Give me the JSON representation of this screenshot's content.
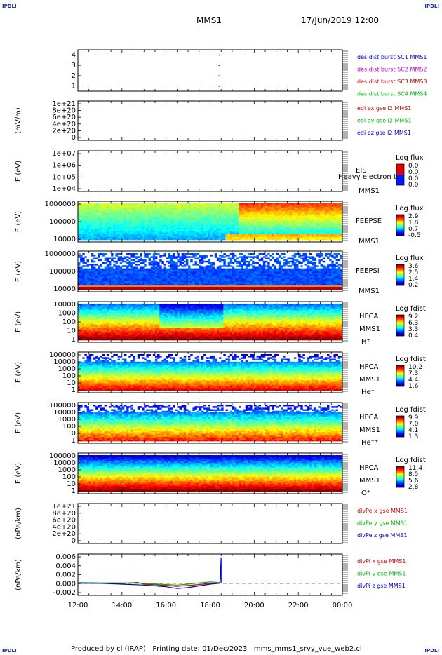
{
  "corner_labels": [
    "IPDLI",
    "IPDLI",
    "IPDLI",
    "IPDLI"
  ],
  "header": {
    "title": "MMS1",
    "date": "17/Jun/2019 12:00"
  },
  "footer": {
    "text": "Produced by cl (IRAP)   Printing date: 01/Dec/2023   mms_mms1_srvy_vue_web2.cl"
  },
  "x_axis": {
    "ticks": [
      "12:00",
      "14:00",
      "16:00",
      "18:00",
      "20:00",
      "22:00",
      "00:00"
    ]
  },
  "colors": {
    "black": "#000000",
    "blue": "#0000c8",
    "magenta": "#c800c8",
    "red": "#c80000",
    "green": "#00b400"
  },
  "chart_data": [
    {
      "name": "des-dist-burst",
      "type": "scatter",
      "ylabel": "",
      "yticks": [
        "4",
        "3",
        "2",
        "1"
      ],
      "ylim": [
        0.5,
        4.5
      ],
      "series": [
        {
          "name": "des dist burst SC1 MMS1",
          "color": "#0000c8",
          "x": [
            18.4
          ],
          "y": [
            1
          ]
        },
        {
          "name": "des dist burst SC2 MMS2",
          "color": "#c800c8",
          "x": [
            18.4
          ],
          "y": [
            2
          ]
        },
        {
          "name": "des dist burst SC3 MMS3",
          "color": "#c80000",
          "x": [
            18.4
          ],
          "y": [
            3
          ]
        },
        {
          "name": "des dist burst SC4 MMS4",
          "color": "#00b400",
          "x": [
            18.4
          ],
          "y": [
            4
          ]
        }
      ]
    },
    {
      "name": "edi-e-field",
      "type": "line",
      "ylabel": "(mV/m)",
      "yticks": [
        "1e+21",
        "8e+20",
        "6e+20",
        "4e+20",
        "2e+20",
        "0"
      ],
      "ylim": [
        0,
        1e+21
      ],
      "series": [
        {
          "name": "edi ex gse l2 MMS1",
          "color": "#c80000"
        },
        {
          "name": "edi ey gse l2 MMS1",
          "color": "#00b400"
        },
        {
          "name": "edi ez gse l2 MMS1",
          "color": "#0000c8"
        }
      ]
    },
    {
      "name": "eis-spectrogram",
      "type": "heatmap",
      "ylabel": "E (eV)",
      "yticks": [
        "1e+07",
        "1e+06",
        "1e+05",
        "1e+04"
      ],
      "ylim": [
        10000.0,
        10000000.0
      ],
      "yscale": "log",
      "labels": [
        "EIS",
        "MMS1"
      ],
      "overlay_text": "Heavy electron to",
      "colorbar": {
        "title": "Log flux",
        "ticks": [
          "0.0",
          "0.0",
          "0.0",
          "0.0"
        ]
      }
    },
    {
      "name": "feeps-electron-spectrogram",
      "type": "heatmap",
      "ylabel": "E (eV)",
      "yticks": [
        "1000000",
        "100000",
        "10000"
      ],
      "ylim": [
        10000.0,
        1000000.0
      ],
      "yscale": "log",
      "labels": [
        "FEEPSE",
        "MMS1"
      ],
      "colorbar": {
        "title": "Log flux",
        "ticks": [
          "2.9",
          "1.8",
          "0.7",
          "-0.5"
        ]
      }
    },
    {
      "name": "feeps-ion-spectrogram",
      "type": "heatmap",
      "ylabel": "E (eV)",
      "yticks": [
        "1000000",
        "100000",
        "10000"
      ],
      "ylim": [
        10000.0,
        1000000.0
      ],
      "yscale": "log",
      "labels": [
        "FEEPSI",
        "MMS1"
      ],
      "colorbar": {
        "title": "Log flux",
        "ticks": [
          "3.6",
          "2.5",
          "1.4",
          "0.2"
        ]
      }
    },
    {
      "name": "hpca-h-spectrogram",
      "type": "heatmap",
      "ylabel": "E (eV)",
      "yticks": [
        "10000",
        "1000",
        "100",
        "10",
        "1"
      ],
      "ylim": [
        1,
        40000
      ],
      "yscale": "log",
      "labels": [
        "HPCA",
        "MMS1",
        "H⁺"
      ],
      "colorbar": {
        "title": "Log fdist",
        "ticks": [
          "9.2",
          "6.3",
          "3.3",
          "0.4"
        ]
      }
    },
    {
      "name": "hpca-he-spectrogram",
      "type": "heatmap",
      "ylabel": "E (eV)",
      "yticks": [
        "100000",
        "10000",
        "1000",
        "100",
        "10",
        "1"
      ],
      "ylim": [
        1,
        100000
      ],
      "yscale": "log",
      "labels": [
        "HPCA",
        "MMS1",
        "He⁺"
      ],
      "colorbar": {
        "title": "Log fdist",
        "ticks": [
          "10.2",
          "7.3",
          "4.4",
          "1.6"
        ]
      }
    },
    {
      "name": "hpca-he2-spectrogram",
      "type": "heatmap",
      "ylabel": "E (eV)",
      "yticks": [
        "100000",
        "10000",
        "1000",
        "100",
        "10",
        "1"
      ],
      "ylim": [
        1,
        100000
      ],
      "yscale": "log",
      "labels": [
        "HPCA",
        "MMS1",
        "He⁺⁺"
      ],
      "colorbar": {
        "title": "Log fdist",
        "ticks": [
          "9.9",
          "7.0",
          "4.1",
          "1.3"
        ]
      }
    },
    {
      "name": "hpca-o-spectrogram",
      "type": "heatmap",
      "ylabel": "E (eV)",
      "yticks": [
        "100000",
        "10000",
        "1000",
        "100",
        "10",
        "1"
      ],
      "ylim": [
        1,
        100000
      ],
      "yscale": "log",
      "labels": [
        "HPCA",
        "MMS1",
        "O⁺"
      ],
      "colorbar": {
        "title": "Log fdist",
        "ticks": [
          "11.4",
          "8.5",
          "5.6",
          "2.8"
        ]
      }
    },
    {
      "name": "divpe",
      "type": "line",
      "ylabel": "(nPa/km)",
      "yticks": [
        "1e+21",
        "8e+20",
        "6e+20",
        "4e+20",
        "2e+20",
        "0"
      ],
      "ylim": [
        0,
        1e+21
      ],
      "series": [
        {
          "name": "divPe x gse MMS1",
          "color": "#c80000"
        },
        {
          "name": "divPe y gse MMS1",
          "color": "#00b400"
        },
        {
          "name": "divPe z gse MMS1",
          "color": "#0000c8"
        }
      ]
    },
    {
      "name": "divpi",
      "type": "line",
      "ylabel": "(nPa/km)",
      "yticks": [
        "0.006",
        "0.004",
        "0.002",
        "0.000",
        "-0.002"
      ],
      "ylim": [
        -0.0028,
        0.0068
      ],
      "series": [
        {
          "name": "divPi x gse MMS1",
          "color": "#c80000",
          "x": [
            12,
            13,
            14,
            14.7,
            15,
            16,
            16.5,
            17,
            17.5,
            18,
            18.4
          ],
          "y": [
            0.0001,
            0.0,
            0.0,
            0.0002,
            -0.0002,
            -0.0005,
            -0.0007,
            -0.0005,
            -0.0003,
            0.0,
            0.0
          ]
        },
        {
          "name": "divPi y gse MMS1",
          "color": "#00b400",
          "x": [
            12,
            13,
            14,
            15,
            16,
            16.5,
            17,
            17.5,
            18,
            18.4
          ],
          "y": [
            0.0002,
            0.0001,
            0.0001,
            0.0,
            -0.0003,
            -0.0004,
            -0.0002,
            0.0001,
            0.0003,
            0.0002
          ]
        },
        {
          "name": "divPi z gse MMS1",
          "color": "#0000c8",
          "x": [
            12,
            13,
            14,
            15,
            16,
            16.5,
            17,
            17.5,
            18,
            18.4,
            18.45,
            18.5,
            18.5
          ],
          "y": [
            0.0,
            0.0,
            -0.0002,
            -0.0004,
            -0.0008,
            -0.0012,
            -0.001,
            -0.0006,
            -0.0002,
            0.0,
            0.0003,
            0.006,
            0.0
          ]
        }
      ]
    }
  ]
}
